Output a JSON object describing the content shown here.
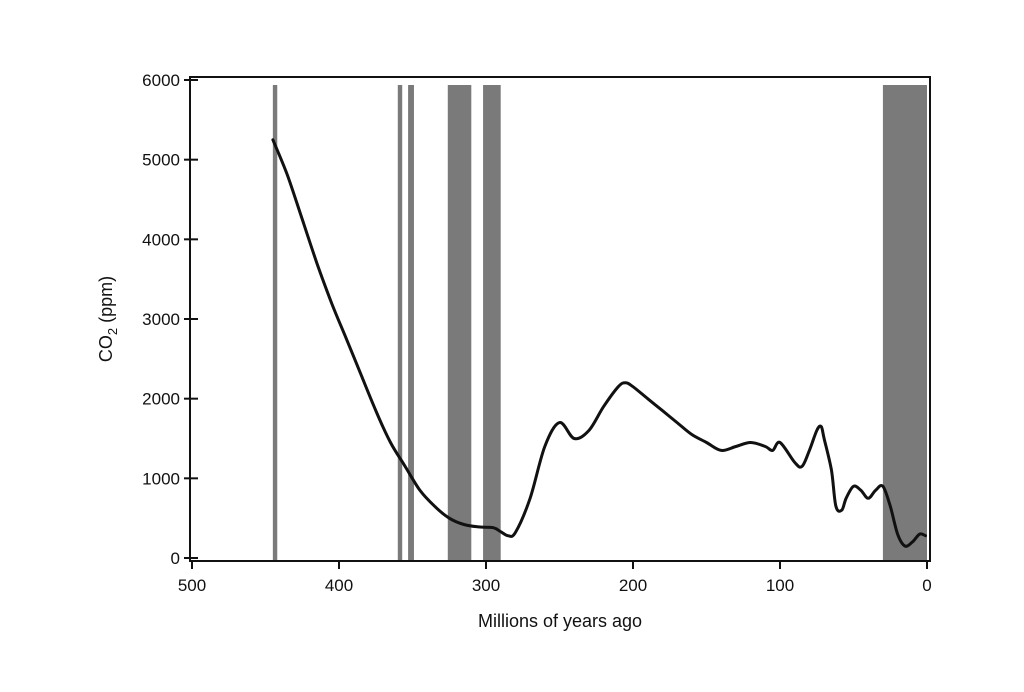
{
  "chart_data": {
    "type": "line",
    "xlabel": "Millions of years ago",
    "ylabel": "CO",
    "ylabel_subscript": "2",
    "ylabel_units": " (ppm)",
    "xlim": [
      500,
      0
    ],
    "ylim": [
      0,
      6000
    ],
    "x_ticks": [
      {
        "value": 500,
        "label": "500"
      },
      {
        "value": 400,
        "label": "400"
      },
      {
        "value": 300,
        "label": "300"
      },
      {
        "value": 200,
        "label": "200"
      },
      {
        "value": 100,
        "label": "100"
      },
      {
        "value": 0,
        "label": "0"
      }
    ],
    "y_ticks": [
      {
        "value": 0,
        "label": "0"
      },
      {
        "value": 1000,
        "label": "1000"
      },
      {
        "value": 2000,
        "label": "2000"
      },
      {
        "value": 3000,
        "label": "3000"
      },
      {
        "value": 4000,
        "label": "4000"
      },
      {
        "value": 5000,
        "label": "5000"
      },
      {
        "value": 6000,
        "label": "6000"
      }
    ],
    "grid": false,
    "colors": {
      "line": "#111111",
      "band": "#7a7a7a",
      "axis": "#111111"
    },
    "glaciation_bands": [
      {
        "start": 445,
        "end": 442
      },
      {
        "start": 360,
        "end": 357
      },
      {
        "start": 353,
        "end": 349
      },
      {
        "start": 326,
        "end": 310
      },
      {
        "start": 302,
        "end": 290
      },
      {
        "start": 30,
        "end": 0
      }
    ],
    "series": [
      {
        "x": [
          445,
          435,
          425,
          415,
          405,
          395,
          385,
          375,
          365,
          355,
          345,
          335,
          325,
          315,
          305,
          295,
          290,
          285,
          280,
          270,
          260,
          250,
          240,
          230,
          220,
          210,
          205,
          200,
          190,
          180,
          170,
          160,
          150,
          140,
          130,
          120,
          110,
          105,
          100,
          90,
          85,
          80,
          75,
          72,
          70,
          65,
          62,
          58,
          55,
          50,
          45,
          40,
          35,
          30,
          25,
          20,
          15,
          10,
          5,
          1
        ],
        "y": [
          5250,
          4800,
          4250,
          3700,
          3200,
          2750,
          2300,
          1850,
          1450,
          1150,
          850,
          650,
          500,
          420,
          390,
          380,
          330,
          280,
          320,
          750,
          1400,
          1700,
          1500,
          1600,
          1900,
          2150,
          2200,
          2150,
          2000,
          1850,
          1700,
          1550,
          1450,
          1350,
          1400,
          1450,
          1400,
          1350,
          1450,
          1200,
          1150,
          1350,
          1600,
          1650,
          1500,
          1100,
          650,
          600,
          750,
          900,
          850,
          750,
          850,
          900,
          650,
          300,
          150,
          200,
          300,
          280
        ]
      }
    ]
  }
}
